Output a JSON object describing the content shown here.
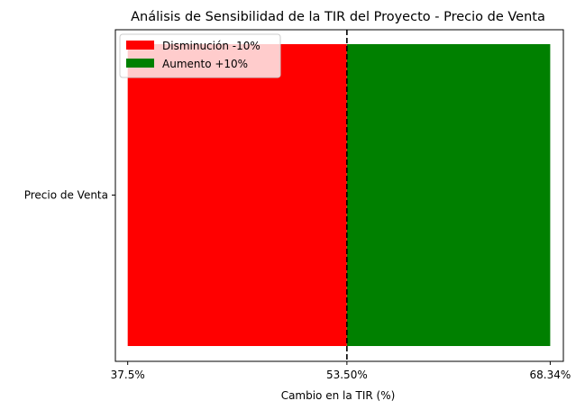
{
  "chart_data": {
    "type": "bar",
    "orientation": "horizontal",
    "title": "Análisis de Sensibilidad de la TIR del Proyecto - Precio de Venta",
    "xlabel": "Cambio en la TIR (%)",
    "ylabel": "",
    "categories": [
      "Precio de Venta"
    ],
    "base_value": 53.5,
    "xlim": [
      36.6,
      69.3
    ],
    "xticks": [
      {
        "value": 37.5,
        "label": "37.5%"
      },
      {
        "value": 53.5,
        "label": "53.50%"
      },
      {
        "value": 68.34,
        "label": "68.34%"
      }
    ],
    "series": [
      {
        "name": "Disminución -10%",
        "color": "#ff0000",
        "start": 53.5,
        "end": 37.5
      },
      {
        "name": "Aumento +10%",
        "color": "#008000",
        "start": 53.5,
        "end": 68.34
      }
    ],
    "reference_line": {
      "value": 53.5,
      "style": "dashed",
      "color": "#000000"
    },
    "legend_position": "upper-left",
    "grid": false
  }
}
